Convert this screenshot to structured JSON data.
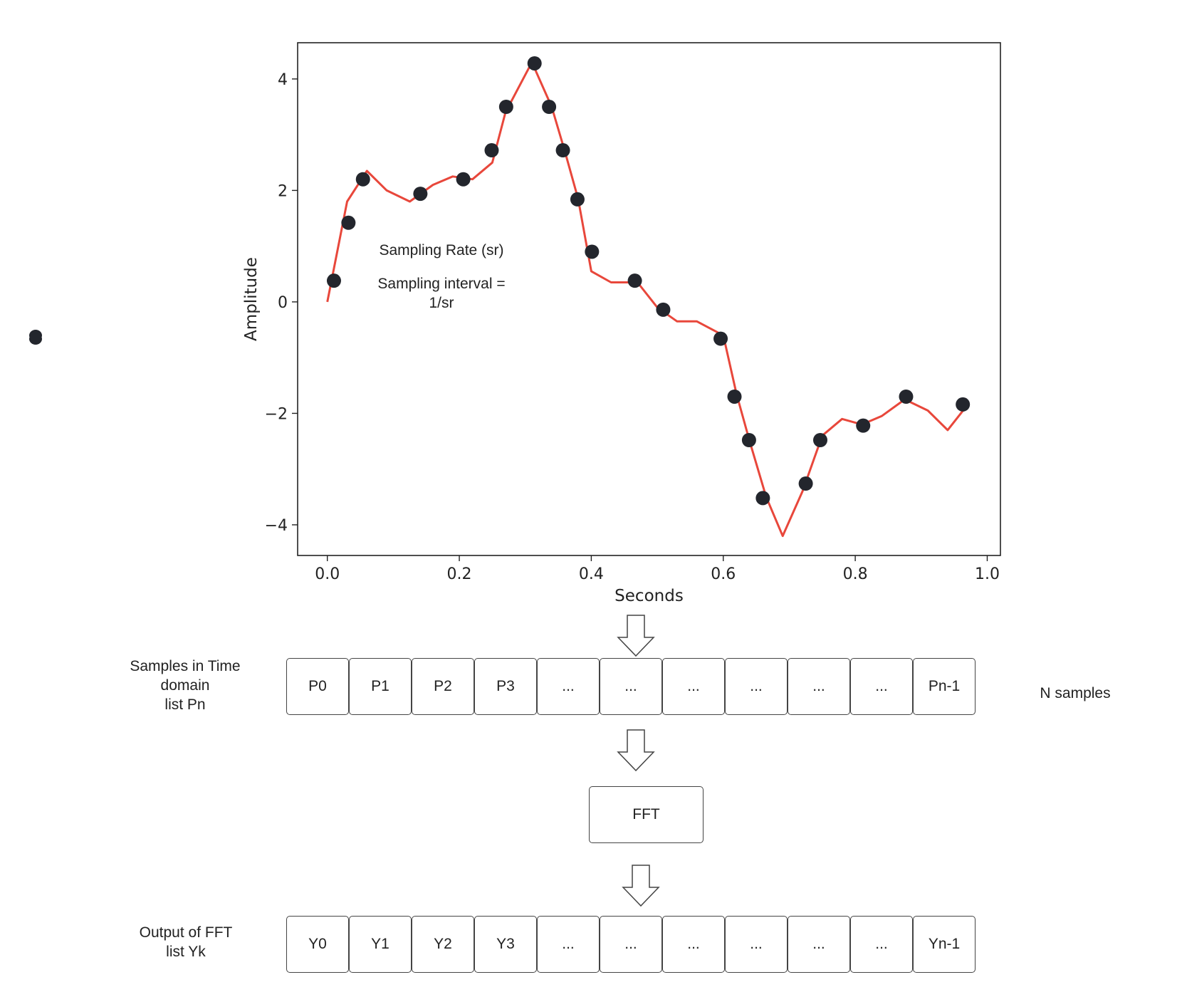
{
  "chart_data": {
    "type": "line",
    "xlabel": "Seconds",
    "ylabel": "Amplitude",
    "xlim": [
      -0.045,
      1.02
    ],
    "ylim": [
      -4.55,
      4.65
    ],
    "xticks": [
      0.0,
      0.2,
      0.4,
      0.6,
      0.8,
      1.0
    ],
    "xtick_labels": [
      "0.0",
      "0.2",
      "0.4",
      "0.6",
      "0.8",
      "1.0"
    ],
    "yticks": [
      4,
      2,
      0,
      -2,
      -4
    ],
    "ytick_labels": [
      "4",
      "2",
      "0",
      "−2",
      "−4"
    ],
    "grid": false,
    "series": [
      {
        "kind": "line",
        "color": "#e8473b",
        "x": [
          0.0,
          0.03,
          0.06,
          0.09,
          0.125,
          0.16,
          0.19,
          0.22,
          0.25,
          0.27,
          0.31,
          0.34,
          0.36,
          0.38,
          0.4,
          0.43,
          0.47,
          0.5,
          0.53,
          0.56,
          0.6,
          0.62,
          0.64,
          0.665,
          0.69,
          0.72,
          0.75,
          0.78,
          0.81,
          0.84,
          0.875,
          0.91,
          0.94,
          0.97
        ],
        "y": [
          0.0,
          1.8,
          2.35,
          2.0,
          1.8,
          2.1,
          2.25,
          2.2,
          2.5,
          3.4,
          4.3,
          3.5,
          2.7,
          1.85,
          0.55,
          0.35,
          0.35,
          -0.1,
          -0.35,
          -0.35,
          -0.6,
          -1.65,
          -2.5,
          -3.5,
          -4.2,
          -3.4,
          -2.4,
          -2.1,
          -2.2,
          -2.05,
          -1.75,
          -1.95,
          -2.3,
          -1.85
        ]
      },
      {
        "kind": "points",
        "color": "#23262d",
        "x": [
          0.01,
          0.032,
          0.054,
          0.141,
          0.206,
          0.249,
          0.271,
          0.314,
          0.336,
          0.357,
          0.379,
          0.401,
          0.466,
          0.509,
          0.596,
          0.617,
          0.639,
          0.66,
          0.725,
          0.747,
          0.812,
          0.877,
          0.963
        ],
        "y": [
          0.38,
          1.42,
          2.2,
          1.94,
          2.2,
          2.72,
          3.5,
          4.28,
          3.5,
          2.72,
          1.84,
          0.9,
          0.38,
          -0.14,
          -0.66,
          -1.7,
          -2.48,
          -3.52,
          -3.26,
          -2.48,
          -2.22,
          -1.7,
          -1.84
        ]
      }
    ]
  },
  "annotation": {
    "line1": "Sampling Rate (sr)",
    "line2": "Sampling interval =\n1/sr"
  },
  "samples": {
    "label": "Samples in Time\ndomain\nlist Pn",
    "cells": [
      "P0",
      "P1",
      "P2",
      "P3",
      "...",
      "...",
      "...",
      "...",
      "...",
      "...",
      "Pn-1"
    ],
    "count_label": "N samples"
  },
  "fft": {
    "label": "FFT"
  },
  "output": {
    "label": "Output of FFT\nlist Yk",
    "cells": [
      "Y0",
      "Y1",
      "Y2",
      "Y3",
      "...",
      "...",
      "...",
      "...",
      "...",
      "...",
      "Yn-1"
    ]
  },
  "colors": {
    "line": "#e8473b",
    "point": "#23262d",
    "border": "#444444"
  }
}
